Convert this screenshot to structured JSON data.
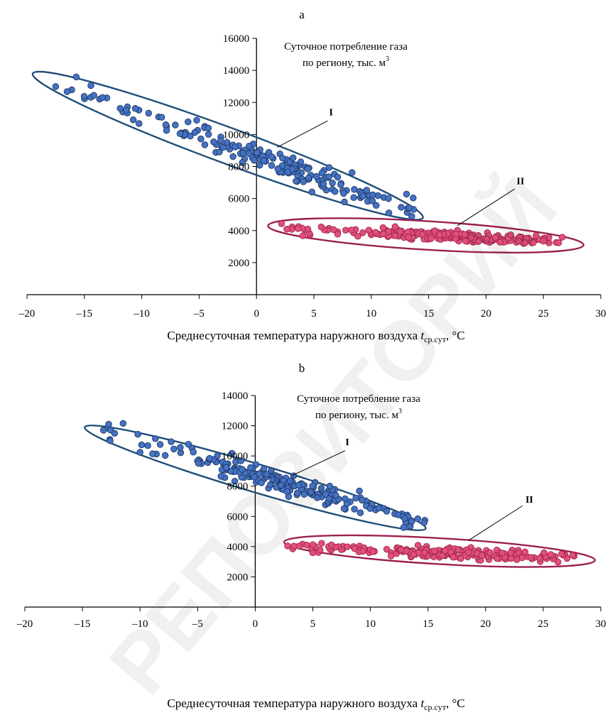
{
  "watermark": {
    "text": "РЕПОЗИТОРИЙ",
    "color": "#000000"
  },
  "chart_data": [
    {
      "type": "scatter",
      "panel_label": "a",
      "title": "",
      "ylabel_lines": [
        "Суточное потребление газа",
        "по региону, тыс. м"
      ],
      "ylabel_superscript": "3",
      "xlabel_main": "Среднесуточная температура наружного воздуха ",
      "xlabel_var": "t",
      "xlabel_sub": "ср.сут",
      "xlabel_unit": ", °С",
      "xlim": [
        -20,
        30
      ],
      "ylim": [
        0,
        16000
      ],
      "xticks": [
        -20,
        -15,
        -10,
        -5,
        0,
        5,
        10,
        15,
        20,
        25,
        30
      ],
      "xtick_labels": [
        "–20",
        "–15",
        "–10",
        "–5",
        "0",
        "5",
        "10",
        "15",
        "20",
        "25",
        "30"
      ],
      "yticks": [
        2000,
        4000,
        6000,
        8000,
        10000,
        12000,
        14000,
        16000
      ],
      "ytick_labels": [
        "2000",
        "4000",
        "6000",
        "8000",
        "10000",
        "12000",
        "14000",
        "16000"
      ],
      "groups": [
        {
          "label": "I",
          "color": "#4472c4",
          "edge": "#1f3864",
          "ellipse_color": "#1f4e79",
          "line": {
            "x0": -17.5,
            "y0": 13300,
            "x1": 13.5,
            "y1": 5200
          },
          "ellipse": {
            "cx": -2.5,
            "cy": 9300,
            "w": 34.5,
            "h": 1700,
            "ax0": -19.5,
            "ay0": 13800,
            "ax1": 14.5,
            "ay1": 4800
          },
          "n": 190,
          "spread": 650,
          "xrange": [
            -17.5,
            13.7
          ],
          "density_center": 2.5,
          "label_pos": {
            "x": 6.5,
            "y": 11200
          },
          "leader": {
            "x0": 1.8,
            "y0": 9200,
            "x1": 6.2,
            "y1": 10850
          }
        },
        {
          "label": "II",
          "color": "#e0507a",
          "edge": "#a0254c",
          "ellipse_color": "#9c2050",
          "line": {
            "x0": 1.2,
            "y0": 4200,
            "x1": 27,
            "y1": 3300
          },
          "ellipse": {
            "cx": 14.5,
            "cy": 3600,
            "w": 30,
            "h": 1250,
            "ax0": 1.0,
            "ay0": 4300,
            "ax1": 28.5,
            "ay1": 3100
          },
          "n": 230,
          "spread": 270,
          "xrange": [
            1.2,
            27
          ],
          "density_center": 17,
          "label_pos": {
            "x": 23.0,
            "y": 6900
          },
          "leader": {
            "x0": 17.5,
            "y0": 4300,
            "x1": 22.5,
            "y1": 6600
          }
        }
      ],
      "series": [
        {
          "name": "I",
          "x": [
            -17.5,
            -15,
            -10,
            -5,
            0,
            5,
            10,
            13.5
          ],
          "y": [
            13300,
            14300,
            11700,
            10000,
            8300,
            7400,
            6300,
            5500
          ]
        },
        {
          "name": "II",
          "x": [
            1.2,
            5,
            10,
            15,
            20,
            25,
            27
          ],
          "y": [
            4200,
            4100,
            3900,
            3700,
            3500,
            3400,
            3300
          ]
        }
      ]
    },
    {
      "type": "scatter",
      "panel_label": "b",
      "title": "",
      "ylabel_lines": [
        "Суточное потребление газа",
        "по региону, тыс. м"
      ],
      "ylabel_superscript": "3",
      "xlabel_main": "Среднесуточная температура наружного воздуха ",
      "xlabel_var": "t",
      "xlabel_sub": "ср.сут",
      "xlabel_unit": ", °С",
      "xlim": [
        -20,
        30
      ],
      "ylim": [
        0,
        14000
      ],
      "xticks": [
        -20,
        -15,
        -10,
        -5,
        0,
        5,
        10,
        15,
        20,
        25,
        30
      ],
      "xtick_labels": [
        "–20",
        "–15",
        "–10",
        "–5",
        "0",
        "5",
        "10",
        "15",
        "20",
        "25",
        "30"
      ],
      "yticks": [
        2000,
        4000,
        6000,
        8000,
        10000,
        12000,
        14000
      ],
      "ytick_labels": [
        "2000",
        "4000",
        "6000",
        "8000",
        "10000",
        "12000",
        "14000"
      ],
      "groups": [
        {
          "label": "I",
          "color": "#4472c4",
          "edge": "#1f3864",
          "ellipse_color": "#1f4e79",
          "line": {
            "x0": -13,
            "y0": 11700,
            "x1": 14.5,
            "y1": 5600
          },
          "ellipse": {
            "cx": -0.5,
            "cy": 8700,
            "w": 31.5,
            "h": 1300,
            "ax0": -14.8,
            "ay0": 11900,
            "ax1": 14.8,
            "ay1": 5200
          },
          "n": 200,
          "spread": 620,
          "xrange": [
            -13.2,
            14.8
          ],
          "density_center": 1.5,
          "label_pos": {
            "x": 8.0,
            "y": 10700
          },
          "leader": {
            "x0": 3.2,
            "y0": 8700,
            "x1": 7.8,
            "y1": 10350
          }
        },
        {
          "label": "II",
          "color": "#e0507a",
          "edge": "#a0254c",
          "ellipse_color": "#9c2050",
          "line": {
            "x0": 2.5,
            "y0": 4000,
            "x1": 27.8,
            "y1": 3200
          },
          "ellipse": {
            "cx": 15.5,
            "cy": 3700,
            "w": 29.5,
            "h": 1150,
            "ax0": 2.5,
            "ay0": 4300,
            "ax1": 29.5,
            "ay1": 3100
          },
          "n": 210,
          "spread": 300,
          "xrange": [
            2.5,
            27.8
          ],
          "density_center": 17.5,
          "label_pos": {
            "x": 23.8,
            "y": 6900
          },
          "leader": {
            "x0": 18.5,
            "y0": 4400,
            "x1": 23.2,
            "y1": 6700
          }
        }
      ],
      "series": [
        {
          "name": "I",
          "x": [
            -13,
            -10,
            -5,
            0,
            5,
            10,
            14.5
          ],
          "y": [
            11700,
            11000,
            10000,
            8600,
            7400,
            6600,
            5500
          ]
        },
        {
          "name": "II",
          "x": [
            2.5,
            5,
            10,
            15,
            20,
            25,
            27.8
          ],
          "y": [
            4000,
            3900,
            3800,
            3600,
            3500,
            3400,
            3200
          ]
        }
      ]
    }
  ]
}
